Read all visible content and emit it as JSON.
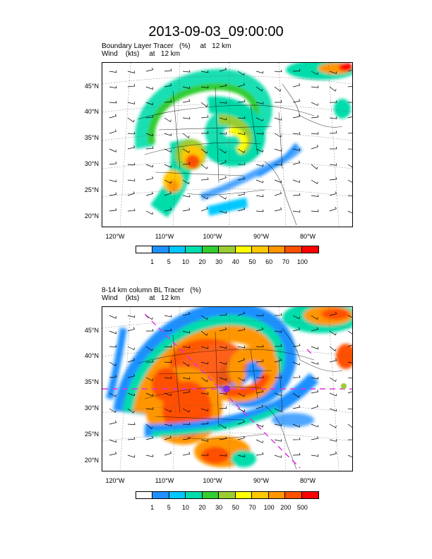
{
  "title": "2013-09-03_09:00:00",
  "lat_labels": [
    "45°N",
    "40°N",
    "35°N",
    "30°N",
    "25°N",
    "20°N"
  ],
  "lon_labels": [
    "120°W",
    "110°W",
    "100°W",
    "90°W",
    "80°W"
  ],
  "panel1": {
    "line1": "Boundary Layer Tracer   (%)     at   12 km",
    "line2": "Wind    (kts)     at   12 km",
    "levels": [
      "1",
      "5",
      "10",
      "20",
      "30",
      "40",
      "50",
      "60",
      "70",
      "100"
    ]
  },
  "panel2": {
    "line1": "8-14 km column BL Tracer   (%)",
    "line2": "Wind    (kts)     at   12 km",
    "levels": [
      "1",
      "5",
      "10",
      "20",
      "30",
      "50",
      "70",
      "100",
      "200",
      "500"
    ]
  },
  "colors": [
    "#ffffff",
    "#1e90ff",
    "#00c8ff",
    "#00dcaa",
    "#32cd32",
    "#9acd32",
    "#ffff00",
    "#ffc800",
    "#ff9600",
    "#ff5000",
    "#ff0000"
  ],
  "chart_data": [
    {
      "type": "heatmap",
      "title": "Boundary Layer Tracer (%) at 12 km",
      "xlabel": "",
      "ylabel": "",
      "x_ticks": [
        "120°W",
        "110°W",
        "100°W",
        "90°W",
        "80°W"
      ],
      "y_ticks": [
        "45°N",
        "40°N",
        "35°N",
        "30°N",
        "25°N",
        "20°N"
      ],
      "colorbar_levels": [
        1,
        5,
        10,
        20,
        30,
        40,
        50,
        60,
        70,
        100
      ],
      "overlay": "Wind (kts) at 12 km"
    },
    {
      "type": "heatmap",
      "title": "8-14 km column BL Tracer (%)",
      "xlabel": "",
      "ylabel": "",
      "x_ticks": [
        "120°W",
        "110°W",
        "100°W",
        "90°W",
        "80°W"
      ],
      "y_ticks": [
        "45°N",
        "40°N",
        "35°N",
        "30°N",
        "25°N",
        "20°N"
      ],
      "colorbar_levels": [
        1,
        5,
        10,
        20,
        30,
        50,
        70,
        100,
        200,
        500
      ],
      "overlay": "Wind (kts) at 12 km"
    }
  ]
}
